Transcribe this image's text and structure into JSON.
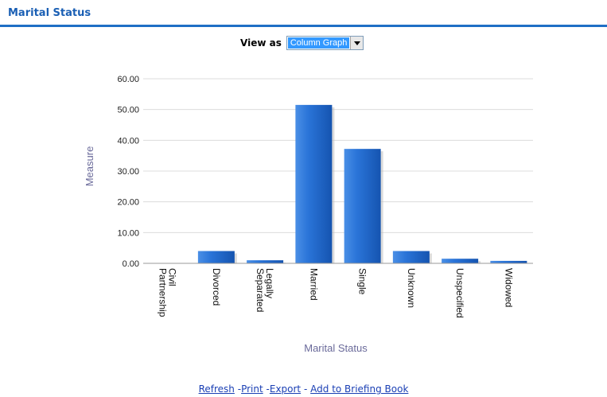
{
  "header": {
    "title": "Marital Status"
  },
  "view_as": {
    "label": "View as",
    "selected": "Column Graph",
    "dropdown_icon": "triangle-down-icon"
  },
  "colors": {
    "bar": "#1f6fd6",
    "accent": "#1f6fc5",
    "axis_text": "#6a6a9a"
  },
  "chart_data": {
    "type": "bar",
    "categories": [
      "Civil Partnership",
      "Divorced",
      "Legally Separated",
      "Married",
      "Single",
      "Unknown",
      "Unspecified",
      "Widowed"
    ],
    "category_lines": [
      [
        "Civil",
        "Partnership"
      ],
      [
        "Divorced"
      ],
      [
        "Legally",
        "Separated"
      ],
      [
        "Married"
      ],
      [
        "Single"
      ],
      [
        "Unknown"
      ],
      [
        "Unspecified"
      ],
      [
        "Widowed"
      ]
    ],
    "values": [
      0.0,
      4.0,
      1.0,
      51.5,
      37.2,
      4.0,
      1.5,
      0.8
    ],
    "xlabel": "Marital Status",
    "ylabel": "Measure",
    "ylim": [
      0,
      60
    ],
    "yticks": [
      "0.00",
      "10.00",
      "20.00",
      "30.00",
      "40.00",
      "50.00",
      "60.00"
    ],
    "grid": true
  },
  "footer": {
    "refresh": "Refresh",
    "print": "Print",
    "export": "Export",
    "briefing": "Add to Briefing Book",
    "separator": "-"
  }
}
